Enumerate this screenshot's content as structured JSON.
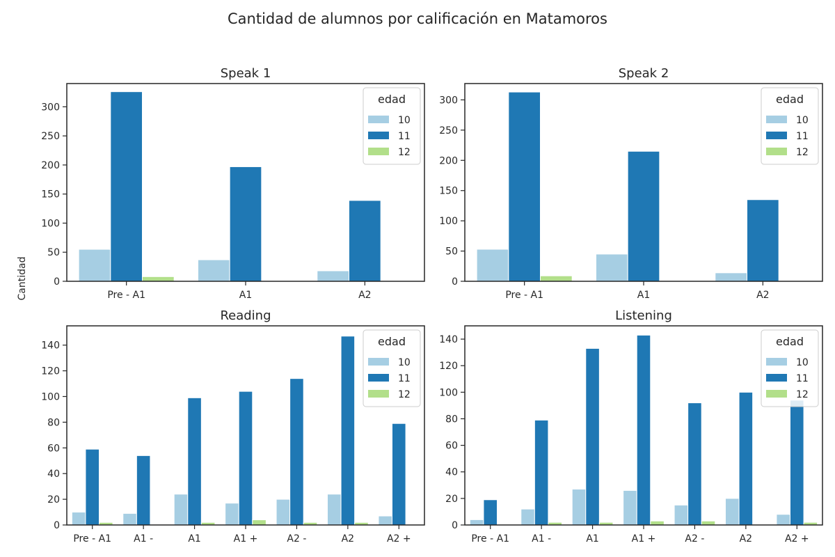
{
  "figure_title": "Cantidad de alumnos por calificación en Matamoros",
  "shared_ylabel": "Cantidad",
  "colors": {
    "10": "#a6cee3",
    "11": "#1f78b4",
    "12": "#b2df8a"
  },
  "chart_data": [
    {
      "type": "bar",
      "title": "Speak 1",
      "categories": [
        "Pre - A1",
        "A1",
        "A2"
      ],
      "legend": {
        "title": "edad",
        "entries": [
          "10",
          "11",
          "12"
        ],
        "position": "upper right"
      },
      "series": [
        {
          "name": "10",
          "values": [
            55,
            37,
            18
          ]
        },
        {
          "name": "11",
          "values": [
            326,
            197,
            139
          ]
        },
        {
          "name": "12",
          "values": [
            8,
            0,
            0
          ]
        }
      ],
      "ylim": [
        0,
        340
      ],
      "yticks": [
        0,
        50,
        100,
        150,
        200,
        250,
        300
      ]
    },
    {
      "type": "bar",
      "title": "Speak 2",
      "categories": [
        "Pre - A1",
        "A1",
        "A2"
      ],
      "legend": {
        "title": "edad",
        "entries": [
          "10",
          "11",
          "12"
        ],
        "position": "upper right"
      },
      "series": [
        {
          "name": "10",
          "values": [
            53,
            45,
            14
          ]
        },
        {
          "name": "11",
          "values": [
            313,
            215,
            135
          ]
        },
        {
          "name": "12",
          "values": [
            9,
            0,
            0
          ]
        }
      ],
      "ylim": [
        0,
        327
      ],
      "yticks": [
        0,
        50,
        100,
        150,
        200,
        250,
        300
      ]
    },
    {
      "type": "bar",
      "title": "Reading",
      "categories": [
        "Pre - A1",
        "A1 -",
        "A1",
        "A1 +",
        "A2 -",
        "A2",
        "A2 +"
      ],
      "legend": {
        "title": "edad",
        "entries": [
          "10",
          "11",
          "12"
        ],
        "position": "upper right"
      },
      "series": [
        {
          "name": "10",
          "values": [
            10,
            9,
            24,
            17,
            20,
            24,
            7
          ]
        },
        {
          "name": "11",
          "values": [
            59,
            54,
            99,
            104,
            114,
            147,
            79
          ]
        },
        {
          "name": "12",
          "values": [
            2,
            0,
            2,
            4,
            2,
            2,
            0
          ]
        }
      ],
      "ylim": [
        0,
        155
      ],
      "yticks": [
        0,
        20,
        40,
        60,
        80,
        100,
        120,
        140
      ]
    },
    {
      "type": "bar",
      "title": "Listening",
      "categories": [
        "Pre - A1",
        "A1 -",
        "A1",
        "A1 +",
        "A2 -",
        "A2",
        "A2 +"
      ],
      "legend": {
        "title": "edad",
        "entries": [
          "10",
          "11",
          "12"
        ],
        "position": "upper right"
      },
      "series": [
        {
          "name": "10",
          "values": [
            4,
            12,
            27,
            26,
            15,
            20,
            8
          ]
        },
        {
          "name": "11",
          "values": [
            19,
            79,
            133,
            143,
            92,
            100,
            94
          ]
        },
        {
          "name": "12",
          "values": [
            0,
            2,
            2,
            3,
            3,
            0,
            2
          ]
        }
      ],
      "ylim": [
        0,
        150
      ],
      "yticks": [
        0,
        20,
        40,
        60,
        80,
        100,
        120,
        140
      ]
    }
  ]
}
